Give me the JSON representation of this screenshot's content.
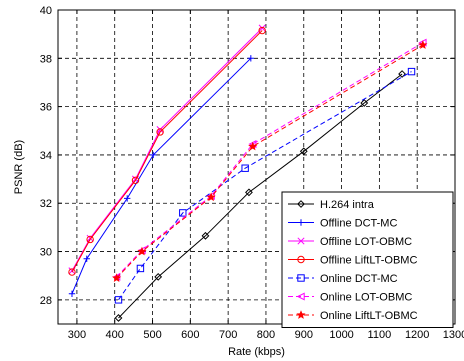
{
  "chart_data": {
    "type": "line",
    "title": "",
    "xlabel": "Rate (kbps)",
    "ylabel": "PSNR (dB)",
    "xlim": [
      250,
      1300
    ],
    "ylim": [
      27,
      40
    ],
    "xticks": [
      300,
      400,
      500,
      600,
      700,
      800,
      900,
      1000,
      1100,
      1200,
      1300
    ],
    "yticks": [
      28,
      30,
      32,
      34,
      36,
      38,
      40
    ],
    "grid": true,
    "grid_style": "dashed",
    "legend_position": "bottom-right",
    "series": [
      {
        "name": "H.264 intra",
        "color": "#000000",
        "dash": "solid",
        "marker": "diamond",
        "x": [
          410,
          515,
          640,
          755,
          900,
          1060,
          1160
        ],
        "y": [
          27.25,
          28.95,
          30.65,
          32.45,
          34.15,
          36.15,
          37.35
        ]
      },
      {
        "name": "Offline DCT-MC",
        "color": "#0000ff",
        "dash": "solid",
        "marker": "plus",
        "x": [
          287,
          326,
          433,
          502,
          760
        ],
        "y": [
          28.25,
          29.7,
          32.2,
          34.0,
          38.0
        ]
      },
      {
        "name": "Offline LOT-OBMC",
        "color": "#ff00ff",
        "dash": "solid",
        "marker": "x",
        "x": [
          287,
          335,
          455,
          520,
          790
        ],
        "y": [
          29.2,
          30.55,
          33.0,
          35.05,
          39.25
        ]
      },
      {
        "name": "Offline LiftLT-OBMC",
        "color": "#ff0000",
        "dash": "solid",
        "marker": "circle",
        "x": [
          287,
          335,
          455,
          520,
          790
        ],
        "y": [
          29.15,
          30.5,
          32.95,
          34.95,
          39.15
        ]
      },
      {
        "name": "Online DCT-MC",
        "color": "#0000ff",
        "dash": "dashed",
        "marker": "square",
        "x": [
          410,
          468,
          580,
          745,
          1185
        ],
        "y": [
          28.0,
          29.3,
          31.6,
          33.45,
          37.45
        ]
      },
      {
        "name": "Online LOT-OBMC",
        "color": "#ff00ff",
        "dash": "dashed",
        "marker": "triangle-left",
        "x": [
          405,
          472,
          655,
          765,
          1215
        ],
        "y": [
          28.95,
          30.05,
          32.3,
          34.45,
          38.65
        ]
      },
      {
        "name": "Online LiftLT-OBMC",
        "color": "#ff0000",
        "dash": "dashed",
        "marker": "star",
        "x": [
          405,
          472,
          655,
          765,
          1215
        ],
        "y": [
          28.9,
          30.0,
          32.25,
          34.35,
          38.55
        ]
      }
    ]
  }
}
